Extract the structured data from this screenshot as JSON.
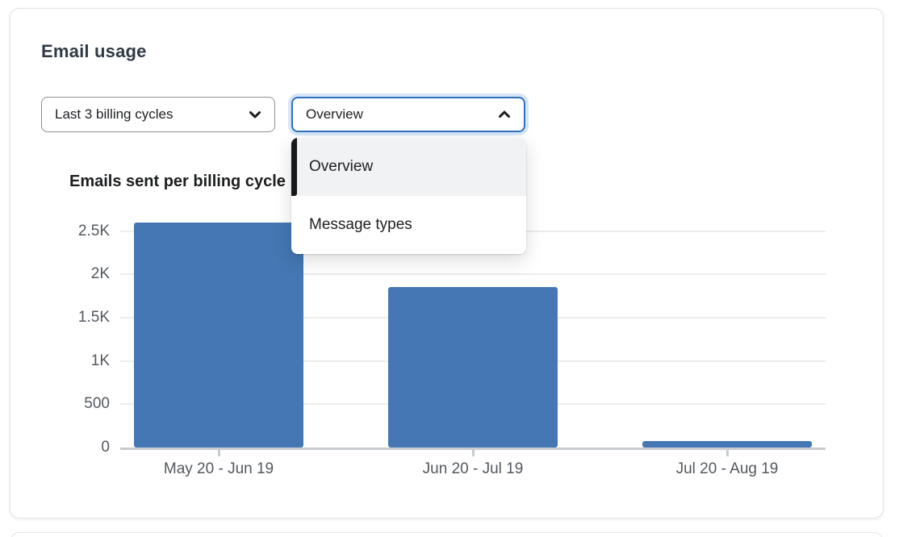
{
  "card": {
    "title": "Email usage"
  },
  "controls": {
    "cycles_select": {
      "value": "Last 3 billing cycles",
      "icon": "chevron-down-icon"
    },
    "view_select": {
      "value": "Overview",
      "icon": "chevron-up-icon",
      "state": "open"
    }
  },
  "menu": {
    "items": [
      {
        "label": "Overview",
        "selected": true
      },
      {
        "label": "Message types",
        "selected": false
      }
    ]
  },
  "chart_data": {
    "type": "bar",
    "title": "Emails sent per billing cycle",
    "categories": [
      "May 20 - Jun 19",
      "Jun 20 - Jul 19",
      "Jul 20 - Aug 19"
    ],
    "values": [
      2600,
      1850,
      75
    ],
    "yticks": [
      0,
      500,
      1000,
      1500,
      2000,
      2500
    ],
    "ytick_labels": [
      "0",
      "500",
      "1K",
      "1.5K",
      "2K",
      "2.5K"
    ],
    "ylim": [
      0,
      2800
    ],
    "xlabel": "",
    "ylabel": "",
    "grid": true,
    "legend": false,
    "bar_color": "#4477b4"
  },
  "colors": {
    "accent_blue": "#4477b4",
    "focus_border": "#2e70bb",
    "focus_ring": "#d6e6f8",
    "heading": "#2f3a45",
    "axis_text": "#53585e",
    "gridline": "#ecedee",
    "axis_line": "#c8ccd0",
    "menu_selected_bg": "#f1f2f4",
    "menu_selected_bar": "#17191c"
  }
}
